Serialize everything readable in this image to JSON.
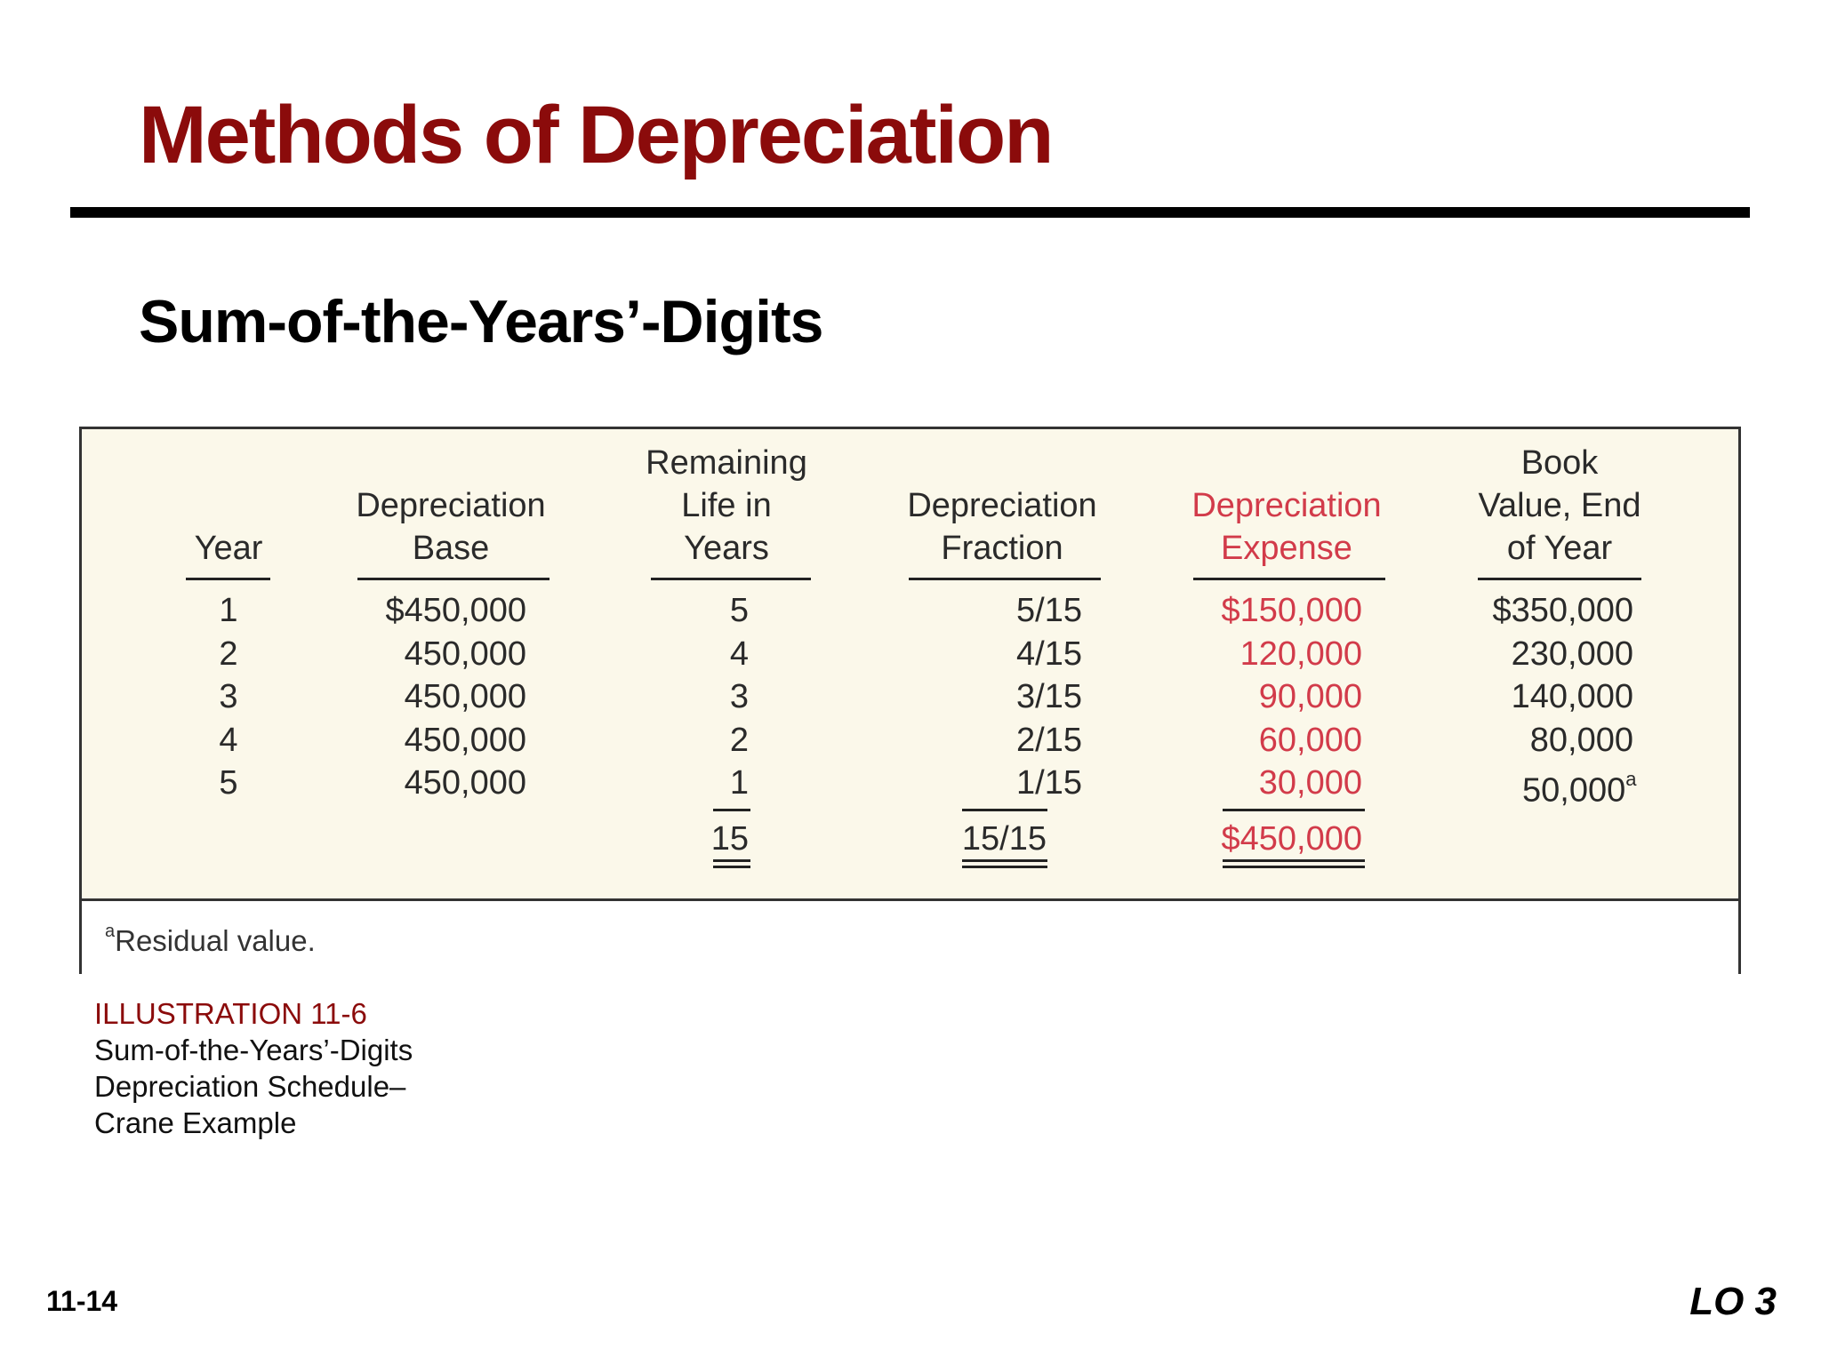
{
  "slide": {
    "title": "Methods of Depreciation",
    "subtitle": "Sum-of-the-Years’-Digits",
    "page_number": "11-14",
    "lo_tag": "LO 3"
  },
  "table": {
    "headers": {
      "year": [
        "Year"
      ],
      "base": [
        "Depreciation",
        "Base"
      ],
      "remaining": [
        "Remaining",
        "Life in",
        "Years"
      ],
      "fraction": [
        "Depreciation",
        "Fraction"
      ],
      "expense": [
        "Depreciation",
        "Expense"
      ],
      "book": [
        "Book",
        "Value, End",
        "of Year"
      ]
    },
    "rows": [
      {
        "year": "1",
        "base": "$450,000",
        "remaining": "5",
        "fraction": "5/15",
        "expense": "$150,000",
        "book": "$350,000"
      },
      {
        "year": "2",
        "base": "450,000",
        "remaining": "4",
        "fraction": "4/15",
        "expense": "120,000",
        "book": "230,000"
      },
      {
        "year": "3",
        "base": "450,000",
        "remaining": "3",
        "fraction": "3/15",
        "expense": "90,000",
        "book": "140,000"
      },
      {
        "year": "4",
        "base": "450,000",
        "remaining": "2",
        "fraction": "2/15",
        "expense": "60,000",
        "book": "80,000"
      },
      {
        "year": "5",
        "base": "450,000",
        "remaining": "1",
        "fraction": "1/15",
        "expense": "30,000",
        "book": "50,000"
      }
    ],
    "book_footnote_marker": "a",
    "totals": {
      "remaining": "15",
      "fraction": "15/15",
      "expense": "$450,000"
    },
    "footnote": {
      "marker": "a",
      "text": "Residual value."
    },
    "accent_color": "#d23b4a",
    "background_color": "#fbf8ea"
  },
  "caption": {
    "title": "ILLUSTRATION 11-6",
    "lines": [
      "Sum-of-the-Years’-Digits",
      "Depreciation Schedule–",
      "Crane Example"
    ]
  }
}
